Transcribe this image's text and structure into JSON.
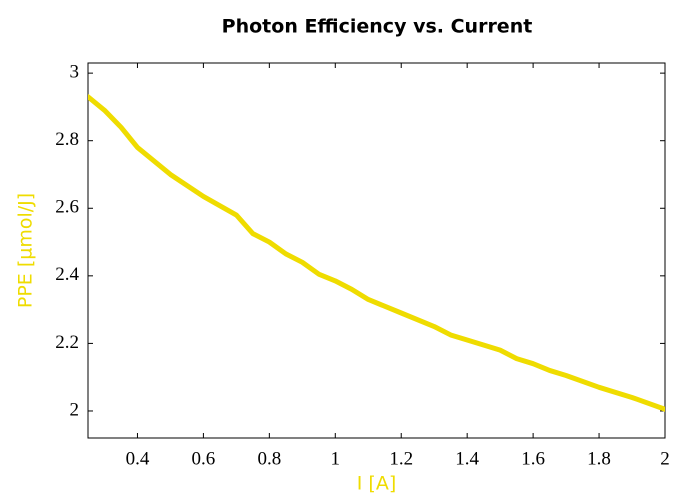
{
  "chart_data": {
    "type": "line",
    "title": "Photon Efficiency vs. Current",
    "x_label": "I [A]",
    "y_label": "PPE [µmol/J]",
    "x": [
      0.25,
      0.3,
      0.35,
      0.4,
      0.5,
      0.6,
      0.7,
      0.75,
      0.8,
      0.85,
      0.9,
      0.95,
      1.0,
      1.05,
      1.1,
      1.2,
      1.3,
      1.35,
      1.4,
      1.5,
      1.55,
      1.6,
      1.65,
      1.7,
      1.8,
      1.9,
      2.0
    ],
    "series": [
      {
        "name": "PPE",
        "color": "#efdc00",
        "values": [
          2.93,
          2.89,
          2.84,
          2.78,
          2.7,
          2.635,
          2.58,
          2.525,
          2.5,
          2.465,
          2.44,
          2.405,
          2.385,
          2.36,
          2.33,
          2.29,
          2.25,
          2.225,
          2.21,
          2.18,
          2.155,
          2.14,
          2.12,
          2.105,
          2.07,
          2.04,
          2.005
        ]
      }
    ],
    "xlim": [
      0.25,
      2
    ],
    "ylim": [
      1.92,
      3.03
    ],
    "xticks": [
      0.4,
      0.6,
      0.8,
      1,
      1.2,
      1.4,
      1.6,
      1.8,
      2
    ],
    "yticks": [
      2,
      2.2,
      2.4,
      2.6,
      2.8,
      3
    ],
    "label_color": "#efdc00"
  }
}
